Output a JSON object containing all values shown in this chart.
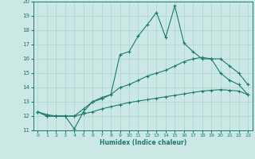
{
  "xlabel": "Humidex (Indice chaleur)",
  "xlim": [
    -0.5,
    23.5
  ],
  "ylim": [
    11,
    20
  ],
  "xticks": [
    0,
    1,
    2,
    3,
    4,
    5,
    6,
    7,
    8,
    9,
    10,
    11,
    12,
    13,
    14,
    15,
    16,
    17,
    18,
    19,
    20,
    21,
    22,
    23
  ],
  "yticks": [
    11,
    12,
    13,
    14,
    15,
    16,
    17,
    18,
    19,
    20
  ],
  "line_color": "#1a7a6e",
  "bg_color": "#cce8e5",
  "grid_color": "#aad4d0",
  "line1_x": [
    0,
    1,
    2,
    3,
    4,
    5,
    6,
    7,
    8,
    9,
    10,
    11,
    12,
    13,
    14,
    15,
    16,
    17,
    18,
    19,
    20,
    21,
    22,
    23
  ],
  "line1_y": [
    12.3,
    12.0,
    12.0,
    12.0,
    11.1,
    12.3,
    13.0,
    13.2,
    13.5,
    16.3,
    16.5,
    17.6,
    18.4,
    19.25,
    17.5,
    19.7,
    17.1,
    16.5,
    16.0,
    16.0,
    15.0,
    14.5,
    14.2,
    13.5
  ],
  "line2_x": [
    0,
    1,
    2,
    3,
    4,
    5,
    6,
    7,
    8,
    9,
    10,
    11,
    12,
    13,
    14,
    15,
    16,
    17,
    18,
    19,
    20,
    21,
    22,
    23
  ],
  "line2_y": [
    12.3,
    12.0,
    12.0,
    12.0,
    12.0,
    12.5,
    13.0,
    13.3,
    13.5,
    14.0,
    14.2,
    14.5,
    14.8,
    15.0,
    15.2,
    15.5,
    15.8,
    16.0,
    16.1,
    16.0,
    16.0,
    15.5,
    15.0,
    14.2
  ],
  "line3_x": [
    0,
    1,
    2,
    3,
    4,
    5,
    6,
    7,
    8,
    9,
    10,
    11,
    12,
    13,
    14,
    15,
    16,
    17,
    18,
    19,
    20,
    21,
    22,
    23
  ],
  "line3_y": [
    12.3,
    12.1,
    12.0,
    12.0,
    12.0,
    12.15,
    12.3,
    12.5,
    12.65,
    12.8,
    12.95,
    13.05,
    13.15,
    13.25,
    13.35,
    13.45,
    13.55,
    13.65,
    13.75,
    13.8,
    13.85,
    13.8,
    13.75,
    13.5
  ]
}
